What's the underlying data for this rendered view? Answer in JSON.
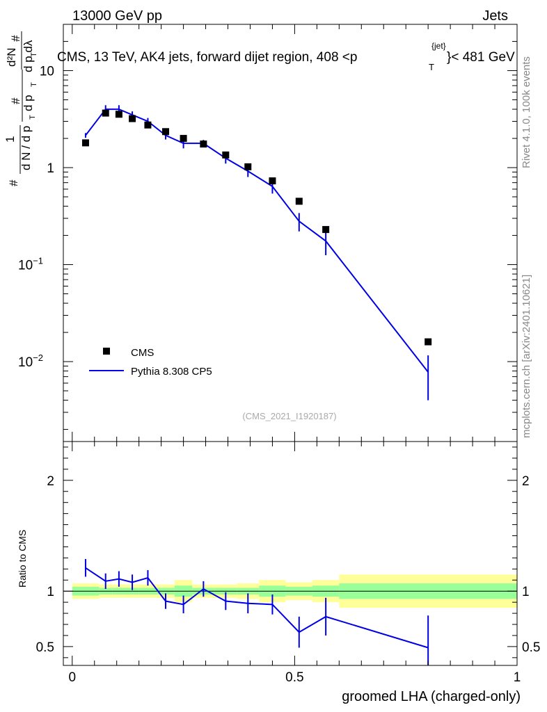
{
  "header": {
    "left": "13000 GeV pp",
    "right": "Jets"
  },
  "side_labels": {
    "rivet": "Rivet 4.1.0,  100k events",
    "source": "mcplots.cern.ch [arXiv:2401.10621]"
  },
  "chart_data": [
    {
      "type": "line",
      "panel": "main",
      "title_prefix": "CMS, 13 TeV, AK4 jets, forward dijet region, 408 <p",
      "title_sup": "{jet}",
      "title_sub": "T",
      "title_suffix": "}< 481 GeV",
      "ylabel": "1/N dN/dp_T dN/dp_T d²N/dp_T dλ",
      "yscale": "log",
      "ylim": [
        0.0015,
        30
      ],
      "xlim": [
        -0.02,
        1.0
      ],
      "yticks": [
        {
          "value": 0.01,
          "base": "10",
          "exp": "−2"
        },
        {
          "value": 0.1,
          "base": "10",
          "exp": "−1"
        },
        {
          "value": 1,
          "base": "1",
          "exp": ""
        },
        {
          "value": 10,
          "base": "10",
          "exp": ""
        }
      ],
      "analysis_id": "(CMS_2021_I1920187)",
      "legend": {
        "position": "lower-left",
        "entries": [
          {
            "label": "CMS",
            "marker": "square",
            "color": "#000000"
          },
          {
            "label": "Pythia 8.308 CP5",
            "marker": "line",
            "color": "#0000e6"
          }
        ]
      },
      "series": [
        {
          "name": "CMS",
          "color": "#000000",
          "x": [
            0.03,
            0.075,
            0.105,
            0.135,
            0.17,
            0.21,
            0.25,
            0.295,
            0.345,
            0.395,
            0.45,
            0.51,
            0.57,
            0.8
          ],
          "y": [
            1.8,
            3.65,
            3.55,
            3.2,
            2.75,
            2.35,
            2.0,
            1.75,
            1.35,
            1.02,
            0.73,
            0.45,
            0.23,
            0.016
          ]
        },
        {
          "name": "Pythia 8.308 CP5",
          "color": "#0000e6",
          "x": [
            0.03,
            0.075,
            0.105,
            0.135,
            0.17,
            0.21,
            0.25,
            0.295,
            0.345,
            0.395,
            0.45,
            0.51,
            0.57,
            0.8
          ],
          "y": [
            2.15,
            4.0,
            4.0,
            3.5,
            3.0,
            2.15,
            1.78,
            1.78,
            1.25,
            0.92,
            0.64,
            0.28,
            0.175,
            0.0078
          ],
          "yerr": [
            0.12,
            0.4,
            0.4,
            0.3,
            0.25,
            0.2,
            0.2,
            0.15,
            0.15,
            0.12,
            0.1,
            0.06,
            0.05,
            0.0038
          ]
        }
      ]
    },
    {
      "type": "line",
      "panel": "ratio",
      "ylabel": "Ratio to CMS",
      "xlabel": "groomed LHA (charged-only)",
      "xlim": [
        -0.02,
        1.0
      ],
      "ylim": [
        0.33,
        2.35
      ],
      "xticks": [
        0,
        0.5,
        1
      ],
      "xtick_labels": [
        "0",
        "0.5",
        "1"
      ],
      "yticks": [
        0.5,
        1,
        2
      ],
      "ytick_labels": [
        "0.5",
        "1",
        "2"
      ],
      "reference": 1.0,
      "bands": {
        "edges": [
          0.0,
          0.06,
          0.09,
          0.12,
          0.15,
          0.19,
          0.23,
          0.27,
          0.32,
          0.37,
          0.42,
          0.48,
          0.54,
          0.6,
          1.0
        ],
        "inner": [
          0.04,
          0.03,
          0.03,
          0.03,
          0.03,
          0.03,
          0.05,
          0.03,
          0.03,
          0.03,
          0.05,
          0.04,
          0.05,
          0.07
        ],
        "outer": [
          0.07,
          0.06,
          0.06,
          0.06,
          0.06,
          0.06,
          0.1,
          0.06,
          0.06,
          0.07,
          0.1,
          0.08,
          0.1,
          0.15
        ],
        "inner_color": "#99ff99",
        "outer_color": "#ffff99"
      },
      "series": [
        {
          "name": "Pythia 8.308 CP5 / CMS",
          "color": "#0000e6",
          "x": [
            0.03,
            0.075,
            0.105,
            0.135,
            0.17,
            0.21,
            0.25,
            0.295,
            0.345,
            0.395,
            0.45,
            0.51,
            0.57,
            0.8
          ],
          "y": [
            1.21,
            1.09,
            1.11,
            1.08,
            1.12,
            0.91,
            0.88,
            1.02,
            0.91,
            0.89,
            0.88,
            0.63,
            0.77,
            0.49
          ],
          "yerr": [
            0.08,
            0.07,
            0.07,
            0.07,
            0.07,
            0.07,
            0.08,
            0.07,
            0.08,
            0.09,
            0.09,
            0.14,
            0.17,
            0.29
          ]
        }
      ]
    }
  ]
}
